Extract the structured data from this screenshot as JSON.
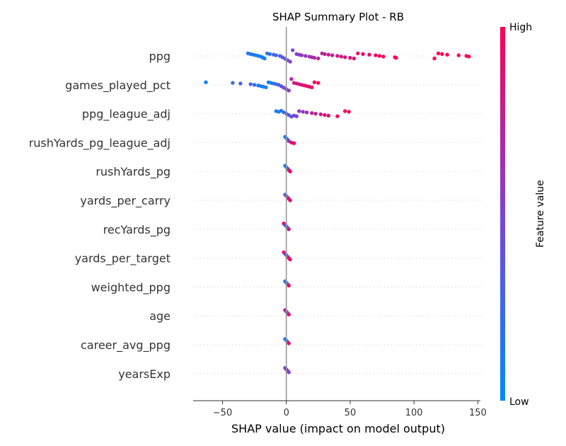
{
  "chart_data": {
    "type": "scatter",
    "title": "SHAP Summary Plot - RB",
    "xlabel": "SHAP value (impact on model output)",
    "xlim": [
      -73,
      152
    ],
    "xticks": [
      -50,
      0,
      50,
      100,
      150
    ],
    "xtick_labels": [
      "−50",
      "0",
      "50",
      "100",
      "150"
    ],
    "features": [
      "ppg",
      "games_played_pct",
      "ppg_league_adj",
      "rushYards_pg_league_adj",
      "rushYards_pg",
      "yards_per_carry",
      "recYards_pg",
      "yards_per_target",
      "weighted_ppg",
      "age",
      "career_avg_ppg",
      "yearsExp"
    ],
    "colorbar": {
      "label": "Feature value",
      "high_label": "High",
      "low_label": "Low",
      "low_color": "#008bfb",
      "high_color": "#ff0052"
    },
    "series": [
      {
        "feature": "ppg",
        "points": [
          [
            -30,
            0.1
          ],
          [
            -28,
            0.2
          ],
          [
            -26,
            0.15
          ],
          [
            -24,
            0.1
          ],
          [
            -22,
            0.1
          ],
          [
            -20,
            0.1
          ],
          [
            -19,
            0.05
          ],
          [
            -18,
            0.05
          ],
          [
            -17,
            0.1
          ],
          [
            -15,
            0.15
          ],
          [
            -13,
            0.2
          ],
          [
            -10,
            0.25
          ],
          [
            -8,
            0.3
          ],
          [
            -5,
            0.3
          ],
          [
            -3,
            0.35
          ],
          [
            -1,
            0.4
          ],
          [
            1,
            0.45
          ],
          [
            3,
            0.5
          ],
          [
            5,
            0.5
          ],
          [
            8,
            0.55
          ],
          [
            10,
            0.55
          ],
          [
            12,
            0.6
          ],
          [
            15,
            0.6
          ],
          [
            18,
            0.65
          ],
          [
            20,
            0.65
          ],
          [
            22,
            0.7
          ],
          [
            25,
            0.7
          ],
          [
            28,
            0.7
          ],
          [
            30,
            0.75
          ],
          [
            33,
            0.75
          ],
          [
            36,
            0.8
          ],
          [
            40,
            0.8
          ],
          [
            43,
            0.85
          ],
          [
            46,
            0.85
          ],
          [
            50,
            0.85
          ],
          [
            53,
            0.9
          ],
          [
            56,
            0.9
          ],
          [
            60,
            0.9
          ],
          [
            65,
            0.9
          ],
          [
            70,
            0.95
          ],
          [
            73,
            0.95
          ],
          [
            76,
            0.95
          ],
          [
            85,
            0.95
          ],
          [
            86,
            1.0
          ],
          [
            116,
            1.0
          ],
          [
            119,
            1.0
          ],
          [
            122,
            1.0
          ],
          [
            126,
            1.0
          ],
          [
            135,
            1.0
          ],
          [
            141,
            1.0
          ],
          [
            143,
            1.0
          ]
        ]
      },
      {
        "feature": "games_played_pct",
        "points": [
          [
            -63,
            0.05
          ],
          [
            -42,
            0.25
          ],
          [
            -36,
            0.3
          ],
          [
            -28,
            0.3
          ],
          [
            -25,
            0.2
          ],
          [
            -22,
            0.15
          ],
          [
            -20,
            0.1
          ],
          [
            -18,
            0.1
          ],
          [
            -16,
            0.05
          ],
          [
            -14,
            0.05
          ],
          [
            -12,
            0.1
          ],
          [
            -10,
            0.15
          ],
          [
            -8,
            0.25
          ],
          [
            -6,
            0.3
          ],
          [
            -4,
            0.4
          ],
          [
            -2,
            0.5
          ],
          [
            0,
            0.55
          ],
          [
            2,
            0.6
          ],
          [
            4,
            0.7
          ],
          [
            6,
            0.75
          ],
          [
            8,
            0.8
          ],
          [
            10,
            0.85
          ],
          [
            12,
            0.85
          ],
          [
            14,
            0.9
          ],
          [
            16,
            0.9
          ],
          [
            18,
            0.9
          ],
          [
            20,
            0.95
          ],
          [
            22,
            0.95
          ],
          [
            25,
            0.95
          ]
        ]
      },
      {
        "feature": "ppg_league_adj",
        "points": [
          [
            -8,
            0.1
          ],
          [
            -6,
            0.1
          ],
          [
            -4,
            0.15
          ],
          [
            -2,
            0.2
          ],
          [
            0,
            0.3
          ],
          [
            2,
            0.35
          ],
          [
            4,
            0.4
          ],
          [
            6,
            0.45
          ],
          [
            8,
            0.5
          ],
          [
            10,
            0.55
          ],
          [
            13,
            0.6
          ],
          [
            16,
            0.65
          ],
          [
            20,
            0.7
          ],
          [
            23,
            0.75
          ],
          [
            27,
            0.8
          ],
          [
            30,
            0.85
          ],
          [
            33,
            0.9
          ],
          [
            40,
            0.95
          ],
          [
            46,
            1.0
          ],
          [
            49,
            1.0
          ]
        ]
      },
      {
        "feature": "rushYards_pg_league_adj",
        "points": [
          [
            -1,
            0.1
          ],
          [
            0,
            0.15
          ],
          [
            1,
            0.3
          ],
          [
            2,
            0.6
          ],
          [
            4,
            0.85
          ],
          [
            6,
            0.95
          ]
        ]
      },
      {
        "feature": "rushYards_pg",
        "points": [
          [
            -1,
            0.1
          ],
          [
            0,
            0.2
          ],
          [
            1,
            0.4
          ],
          [
            2,
            0.7
          ],
          [
            3,
            0.95
          ]
        ]
      },
      {
        "feature": "yards_per_carry",
        "points": [
          [
            -1,
            0.3
          ],
          [
            0,
            0.4
          ],
          [
            1,
            0.6
          ],
          [
            2,
            0.8
          ],
          [
            3,
            0.9
          ]
        ]
      },
      {
        "feature": "recYards_pg",
        "points": [
          [
            -2,
            0.95
          ],
          [
            -1,
            0.5
          ],
          [
            0,
            0.2
          ],
          [
            1,
            0.3
          ],
          [
            2,
            0.8
          ]
        ]
      },
      {
        "feature": "yards_per_target",
        "points": [
          [
            -2,
            0.9
          ],
          [
            -1,
            0.6
          ],
          [
            0,
            0.4
          ],
          [
            1,
            0.5
          ],
          [
            2,
            0.85
          ],
          [
            3,
            0.9
          ]
        ]
      },
      {
        "feature": "weighted_ppg",
        "points": [
          [
            -1,
            0.2
          ],
          [
            0,
            0.1
          ],
          [
            1,
            0.4
          ],
          [
            2,
            0.95
          ]
        ]
      },
      {
        "feature": "age",
        "points": [
          [
            -1,
            0.8
          ],
          [
            0,
            0.5
          ],
          [
            1,
            0.3
          ],
          [
            2,
            0.9
          ]
        ]
      },
      {
        "feature": "career_avg_ppg",
        "points": [
          [
            -1,
            0.2
          ],
          [
            0,
            0.1
          ],
          [
            1,
            0.4
          ],
          [
            2,
            0.9
          ]
        ]
      },
      {
        "feature": "yearsExp",
        "points": [
          [
            -1,
            0.5
          ],
          [
            0,
            0.6
          ],
          [
            1,
            0.7
          ],
          [
            2,
            0.5
          ]
        ]
      }
    ]
  }
}
